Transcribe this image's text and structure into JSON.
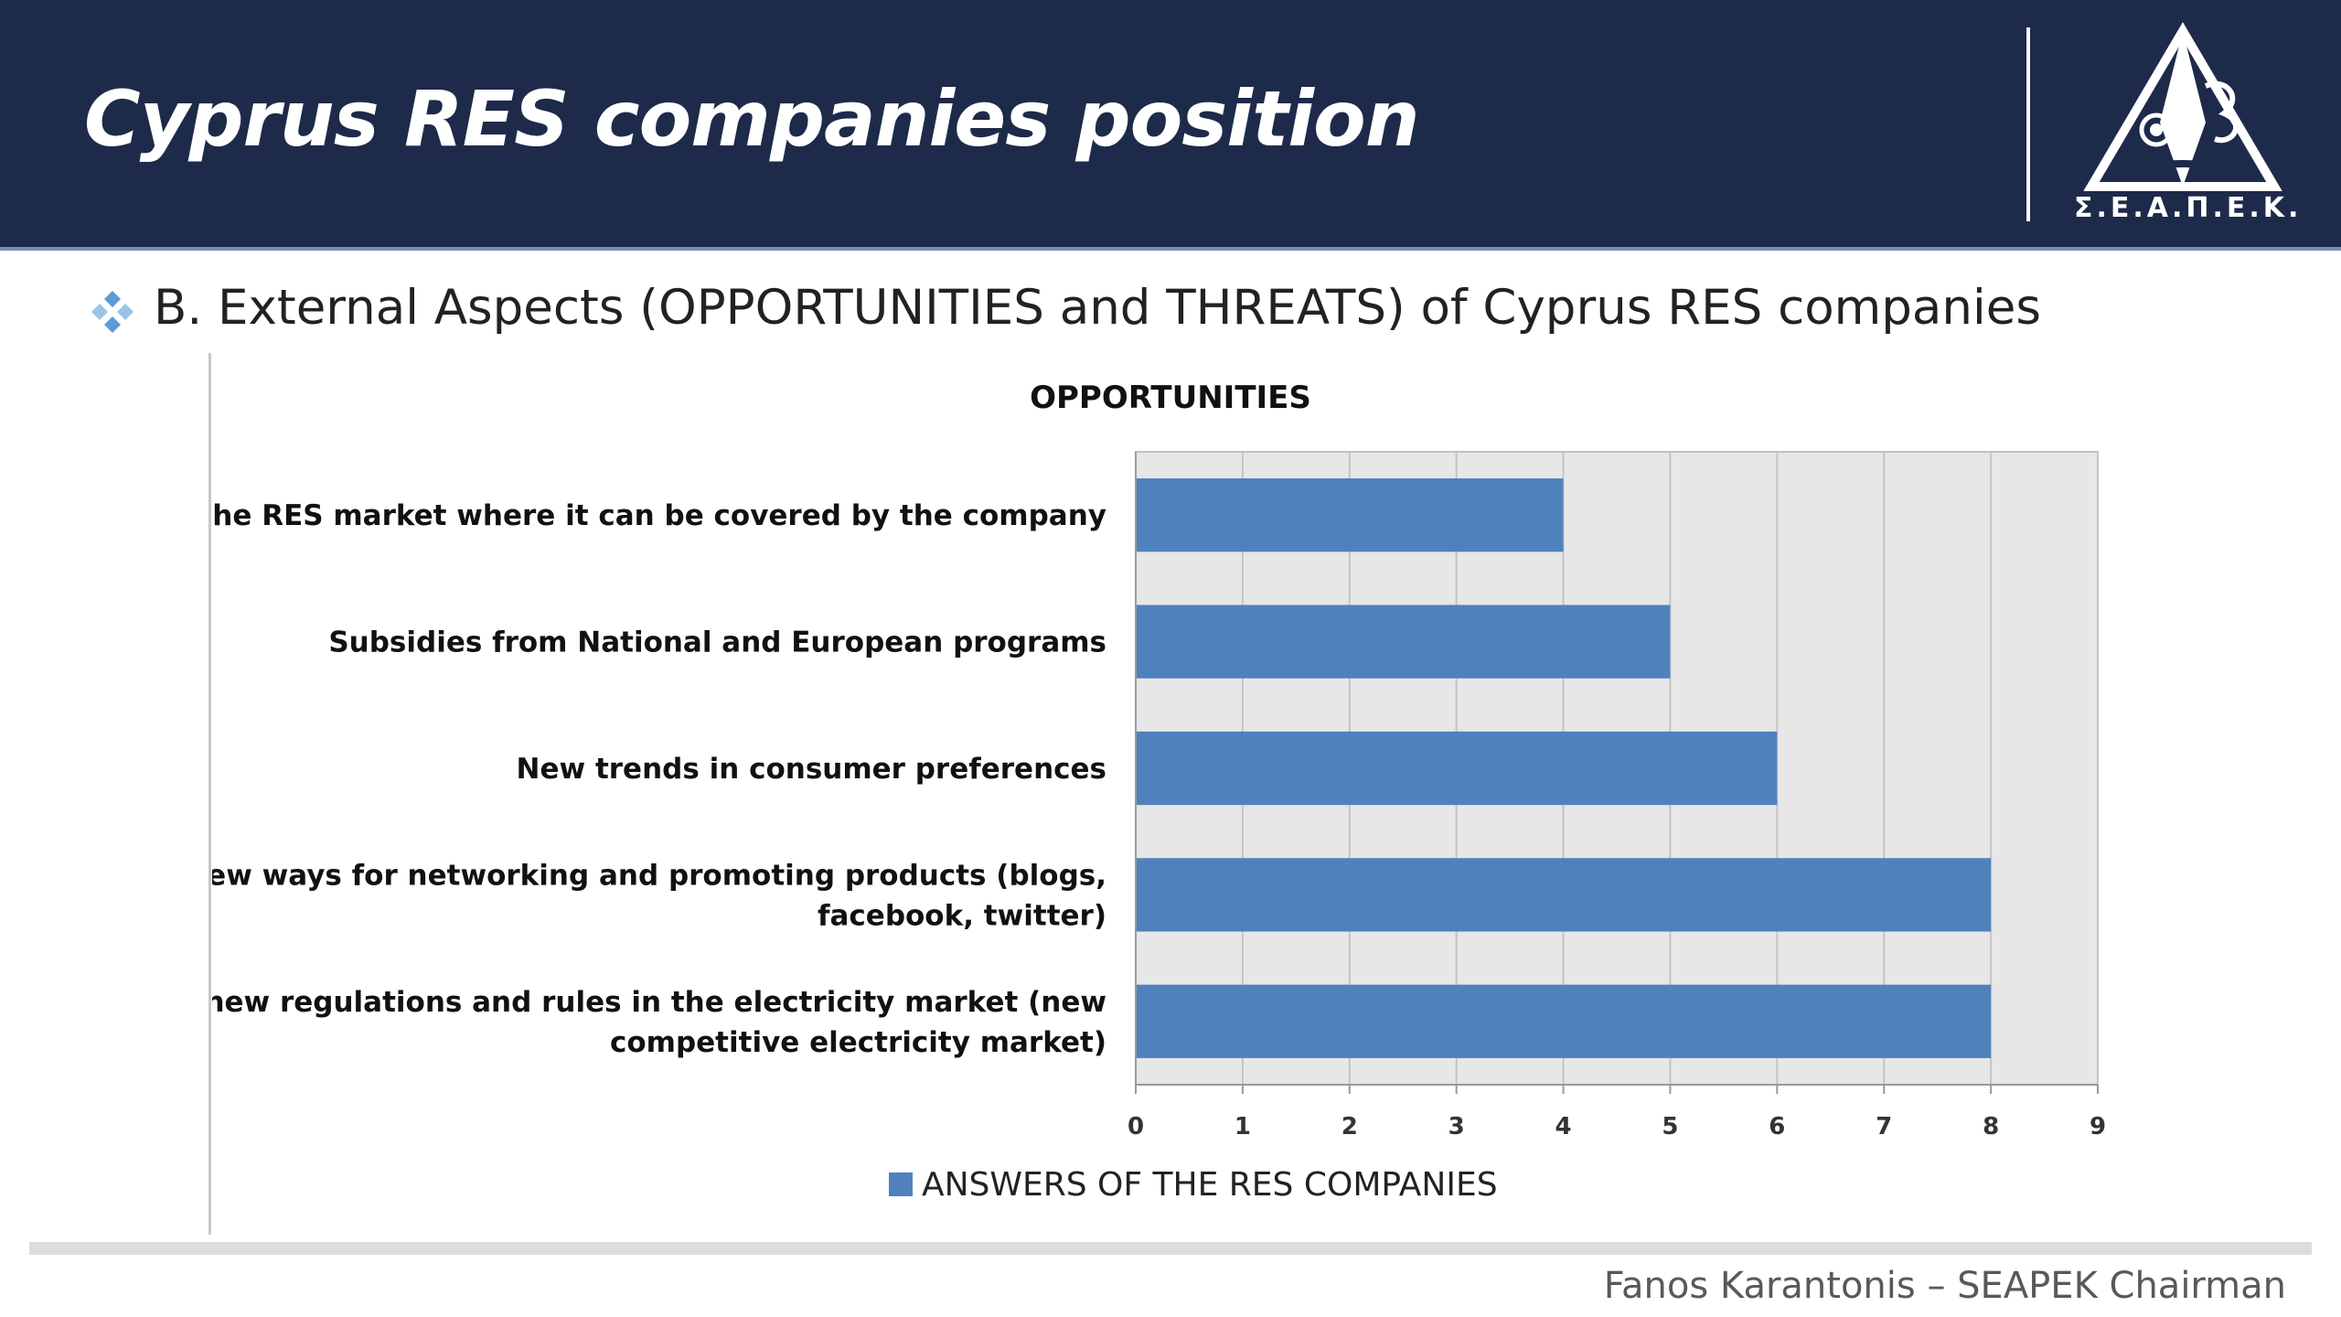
{
  "slide": {
    "title": "Cyprus RES companies position",
    "logo_text": "Σ.Ε.Α.Π.Ε.Κ.",
    "subtitle": "B. External Aspects (OPPORTUNITIES and THREATS) of Cyprus RES companies",
    "footer": "Fanos Karantonis – SEAPEK Chairman",
    "colors": {
      "header_bg": "#1e2a4a",
      "bullet": "#5b9bd5",
      "bar": "#4f81bd",
      "plot_bg": "#e7e7e7"
    },
    "icons": {
      "bullet": "four-diamond-bullet-icon",
      "logo": "seapek-triangle-logo-icon"
    }
  },
  "chart_data": {
    "type": "bar",
    "orientation": "horizontal",
    "title": "OPPORTUNITIES",
    "categories": [
      "Gaps in the RES market where it can be covered by the company",
      "Subsidies from National and European programs",
      "New trends in consumer preferences",
      "New ways for networking and promoting products (blogs, facebook, twitter)",
      "The new regulations and rules in the electricity market (new competitive electricity market)"
    ],
    "category_lines": [
      [
        "Gaps in the RES market where it can be covered by the company"
      ],
      [
        "Subsidies from National and European programs"
      ],
      [
        "New trends in consumer preferences"
      ],
      [
        "New ways for networking and promoting products (blogs,",
        "facebook, twitter)"
      ],
      [
        "The new regulations and rules in the electricity market (new",
        "competitive electricity market)"
      ]
    ],
    "series": [
      {
        "name": "ANSWERS OF THE RES COMPANIES",
        "values": [
          4,
          5,
          6,
          8,
          8
        ]
      }
    ],
    "xlim": [
      0,
      9
    ],
    "xticks": [
      0,
      1,
      2,
      3,
      4,
      5,
      6,
      7,
      8,
      9
    ],
    "xlabel": "",
    "ylabel": "",
    "grid": true,
    "legend_position": "bottom"
  }
}
